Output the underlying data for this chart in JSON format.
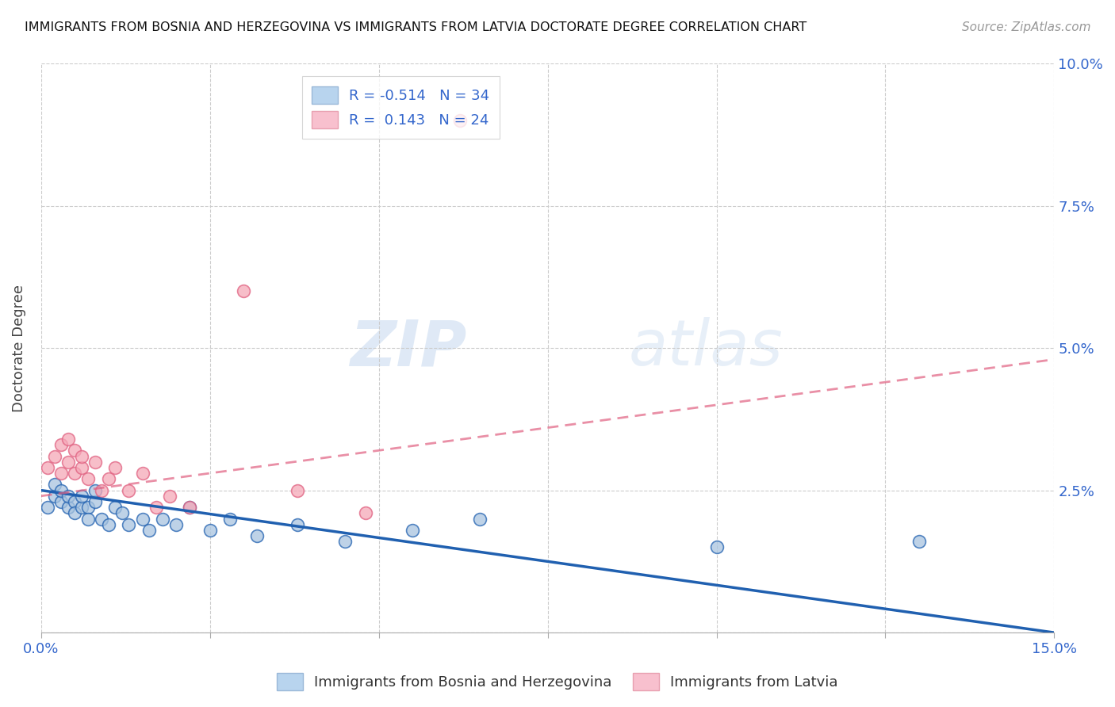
{
  "title": "IMMIGRANTS FROM BOSNIA AND HERZEGOVINA VS IMMIGRANTS FROM LATVIA DOCTORATE DEGREE CORRELATION CHART",
  "source": "Source: ZipAtlas.com",
  "ylabel_label": "Doctorate Degree",
  "xlim": [
    0.0,
    0.15
  ],
  "ylim": [
    0.0,
    0.1
  ],
  "xticks": [
    0.0,
    0.025,
    0.05,
    0.075,
    0.1,
    0.125,
    0.15
  ],
  "yticks": [
    0.0,
    0.025,
    0.05,
    0.075,
    0.1
  ],
  "xtick_labels": [
    "0.0%",
    "",
    "",
    "",
    "",
    "",
    "15.0%"
  ],
  "ytick_labels": [
    "",
    "2.5%",
    "5.0%",
    "7.5%",
    "10.0%"
  ],
  "blue_R": -0.514,
  "blue_N": 34,
  "pink_R": 0.143,
  "pink_N": 24,
  "legend_label_blue": "Immigrants from Bosnia and Herzegovina",
  "legend_label_pink": "Immigrants from Latvia",
  "blue_color": "#a8c4e0",
  "pink_color": "#f5a8b8",
  "blue_line_color": "#2060b0",
  "pink_line_color": "#e06080",
  "watermark_zip": "ZIP",
  "watermark_atlas": "atlas",
  "blue_scatter_x": [
    0.001,
    0.002,
    0.002,
    0.003,
    0.003,
    0.004,
    0.004,
    0.005,
    0.005,
    0.006,
    0.006,
    0.007,
    0.007,
    0.008,
    0.008,
    0.009,
    0.01,
    0.011,
    0.012,
    0.013,
    0.015,
    0.016,
    0.018,
    0.02,
    0.022,
    0.025,
    0.028,
    0.032,
    0.038,
    0.045,
    0.055,
    0.065,
    0.1,
    0.13
  ],
  "blue_scatter_y": [
    0.022,
    0.024,
    0.026,
    0.023,
    0.025,
    0.022,
    0.024,
    0.023,
    0.021,
    0.022,
    0.024,
    0.022,
    0.02,
    0.023,
    0.025,
    0.02,
    0.019,
    0.022,
    0.021,
    0.019,
    0.02,
    0.018,
    0.02,
    0.019,
    0.022,
    0.018,
    0.02,
    0.017,
    0.019,
    0.016,
    0.018,
    0.02,
    0.015,
    0.016
  ],
  "pink_scatter_x": [
    0.001,
    0.002,
    0.003,
    0.003,
    0.004,
    0.004,
    0.005,
    0.005,
    0.006,
    0.006,
    0.007,
    0.008,
    0.009,
    0.01,
    0.011,
    0.013,
    0.015,
    0.017,
    0.019,
    0.022,
    0.03,
    0.038,
    0.048,
    0.062
  ],
  "pink_scatter_y": [
    0.029,
    0.031,
    0.028,
    0.033,
    0.03,
    0.034,
    0.032,
    0.028,
    0.029,
    0.031,
    0.027,
    0.03,
    0.025,
    0.027,
    0.029,
    0.025,
    0.028,
    0.022,
    0.024,
    0.022,
    0.06,
    0.025,
    0.021,
    0.09
  ],
  "blue_line_x": [
    0.0,
    0.15
  ],
  "blue_line_y": [
    0.025,
    0.0
  ],
  "pink_line_x": [
    0.0,
    0.15
  ],
  "pink_line_y": [
    0.024,
    0.048
  ]
}
